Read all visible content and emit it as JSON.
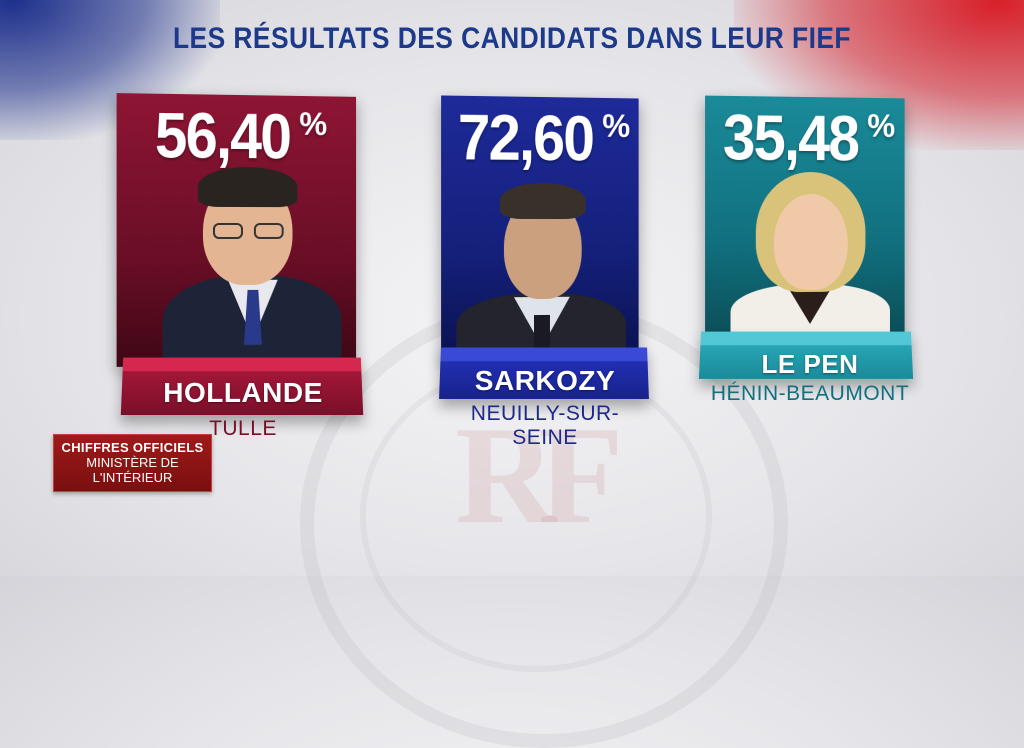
{
  "title": "LES RÉSULTATS DES CANDIDATS DANS LEUR FIEF",
  "candidates": [
    {
      "name": "HOLLANDE",
      "city": "TULLE",
      "score": "56,40",
      "unit": "%",
      "value": 56.4,
      "color": "#8e1534"
    },
    {
      "name": "SARKOZY",
      "city": "NEUILLY-SUR-SEINE",
      "score": "72,60",
      "unit": "%",
      "value": 72.6,
      "color": "#1e2a9a"
    },
    {
      "name": "LE PEN",
      "city": "HÉNIN-BEAUMONT",
      "score": "35,48",
      "unit": "%",
      "value": 35.48,
      "color": "#1a8a99"
    }
  ],
  "source": {
    "line1": "CHIFFRES OFFICIELS",
    "line2": "MINISTÈRE DE",
    "line3": "L'INTÉRIEUR"
  },
  "seal_text": "RF",
  "icons": [
    "flag-blue",
    "flag-red",
    "republic-seal"
  ]
}
